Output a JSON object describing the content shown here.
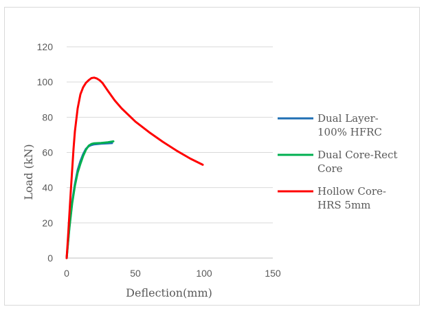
{
  "chart_data": {
    "type": "line",
    "title": "",
    "xlabel": "Deflection(mm)",
    "ylabel": "Load (kN)",
    "xlim": [
      0,
      150
    ],
    "ylim": [
      0,
      120
    ],
    "x_ticks": [
      0,
      50,
      100,
      150
    ],
    "y_ticks": [
      0,
      20,
      40,
      60,
      80,
      100,
      120
    ],
    "grid": "horizontal",
    "legend_position": "right",
    "series": [
      {
        "name": "Dual Layer-100% HFRC",
        "legend_lines": [
          "Dual Layer-",
          "100% HFRC"
        ],
        "color": "#1f6fb4",
        "x": [
          0,
          2,
          4,
          6,
          8,
          10,
          12,
          14,
          16,
          18,
          20,
          25,
          30,
          33
        ],
        "y": [
          0,
          18,
          32,
          42,
          50,
          55,
          59,
          62,
          63.5,
          64.2,
          64.6,
          65,
          65.2,
          65.3
        ]
      },
      {
        "name": "Dual Core-Rect Core",
        "legend_lines": [
          "Dual Core-Rect",
          "Core"
        ],
        "color": "#00b050",
        "x": [
          0,
          2,
          4,
          6,
          8,
          10,
          12,
          14,
          16,
          18,
          20,
          25,
          30,
          34
        ],
        "y": [
          0,
          17,
          31,
          41,
          48.5,
          53.5,
          58,
          61.5,
          63.8,
          64.8,
          65.2,
          65.4,
          65.8,
          66.3
        ]
      },
      {
        "name": "Hollow Core-HRS 5mm",
        "legend_lines": [
          "Hollow Core-",
          "HRS 5mm"
        ],
        "color": "#ff0000",
        "x": [
          0,
          1,
          2,
          3,
          4,
          5,
          6,
          8,
          10,
          12,
          14,
          16,
          18,
          20,
          22,
          24,
          26,
          30,
          35,
          40,
          50,
          60,
          70,
          80,
          90,
          99
        ],
        "y": [
          0,
          12,
          25,
          38,
          50,
          62,
          72,
          85,
          93,
          97,
          99.5,
          101,
          102.2,
          102.5,
          102,
          101,
          99.5,
          95,
          89.5,
          85,
          77.5,
          71.5,
          66,
          61,
          56.5,
          53
        ]
      }
    ]
  }
}
